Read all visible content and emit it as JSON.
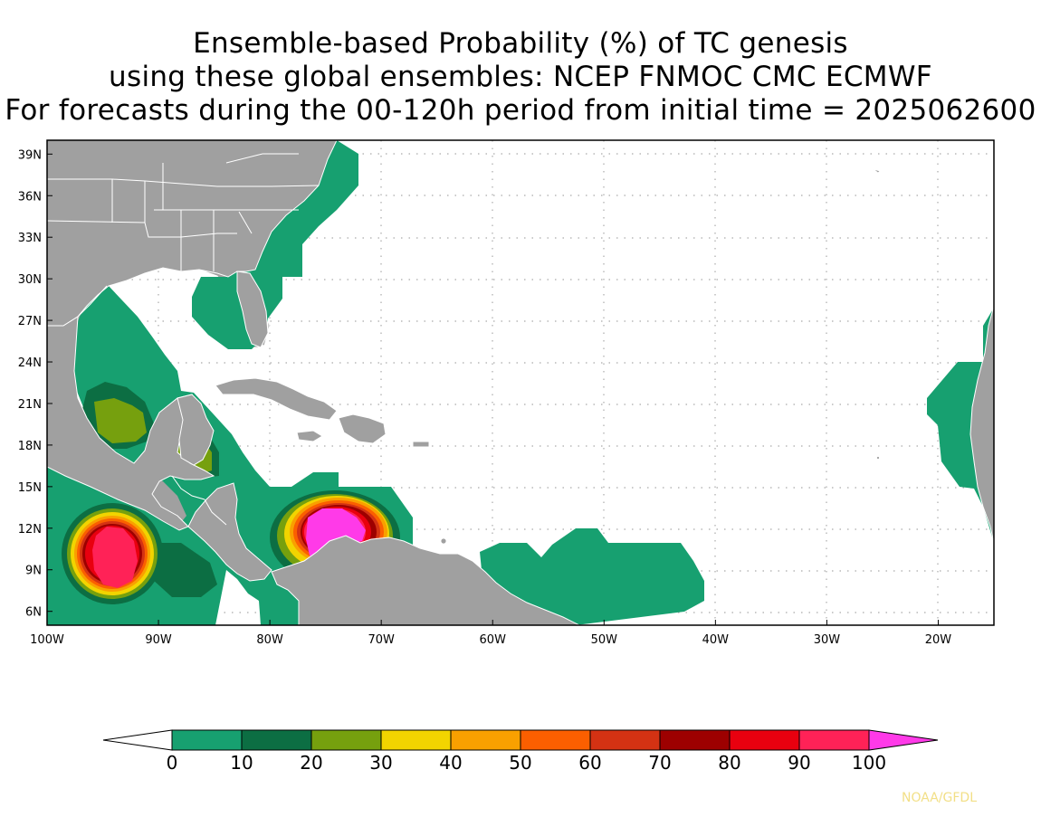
{
  "title": {
    "line1": "Ensemble-based Probability (%) of TC genesis",
    "line2": "using these global ensembles:   NCEP FNMOC CMC ECMWF",
    "line3": "For forecasts during the 00-120h period from initial time = 2025062600"
  },
  "map": {
    "lon_range": [
      -100,
      -15
    ],
    "lat_range": [
      5,
      40
    ],
    "lat_ticks": [
      {
        "v": 39,
        "label": "39N"
      },
      {
        "v": 36,
        "label": "36N"
      },
      {
        "v": 33,
        "label": "33N"
      },
      {
        "v": 30,
        "label": "30N"
      },
      {
        "v": 27,
        "label": "27N"
      },
      {
        "v": 24,
        "label": "24N"
      },
      {
        "v": 21,
        "label": "21N"
      },
      {
        "v": 18,
        "label": "18N"
      },
      {
        "v": 15,
        "label": "15N"
      },
      {
        "v": 12,
        "label": "12N"
      },
      {
        "v": 9,
        "label": "9N"
      },
      {
        "v": 6,
        "label": "6N"
      }
    ],
    "lon_ticks": [
      {
        "v": -100,
        "label": "100W"
      },
      {
        "v": -90,
        "label": "90W"
      },
      {
        "v": -80,
        "label": "80W"
      },
      {
        "v": -70,
        "label": "70W"
      },
      {
        "v": -60,
        "label": "60W"
      },
      {
        "v": -50,
        "label": "50W"
      },
      {
        "v": -40,
        "label": "40W"
      },
      {
        "v": -30,
        "label": "30W"
      },
      {
        "v": -20,
        "label": "20W"
      }
    ],
    "land_color": "#a0a0a0",
    "border_color": "#ffffff",
    "grid": "dotted",
    "genesis_centers": [
      {
        "name": "Eastern Pacific off southern Mexico",
        "lon": -94,
        "lat": 10,
        "peak_probability_range": "90-100"
      },
      {
        "name": "Southwestern Caribbean Sea",
        "lon": -74,
        "lat": 11.5,
        "peak_probability_range": "100+"
      },
      {
        "name": "Bay of Campeche",
        "lon": -92.5,
        "lat": 20,
        "peak_probability_range": "20-30"
      },
      {
        "name": "Gulf of Honduras / Yucatan",
        "lon": -87,
        "lat": 17.5,
        "peak_probability_range": "20-30"
      }
    ]
  },
  "colorbar": {
    "levels": [
      "0",
      "10",
      "20",
      "30",
      "40",
      "50",
      "60",
      "70",
      "80",
      "90",
      "100"
    ],
    "colors": [
      "#ffffff",
      "#17a070",
      "#0c6e43",
      "#76a00e",
      "#f2d400",
      "#f9a000",
      "#fb5f00",
      "#d43213",
      "#9d0000",
      "#e8000f",
      "#ff2257",
      "#ff3ae8"
    ]
  },
  "credit": "NOAA/GFDL"
}
